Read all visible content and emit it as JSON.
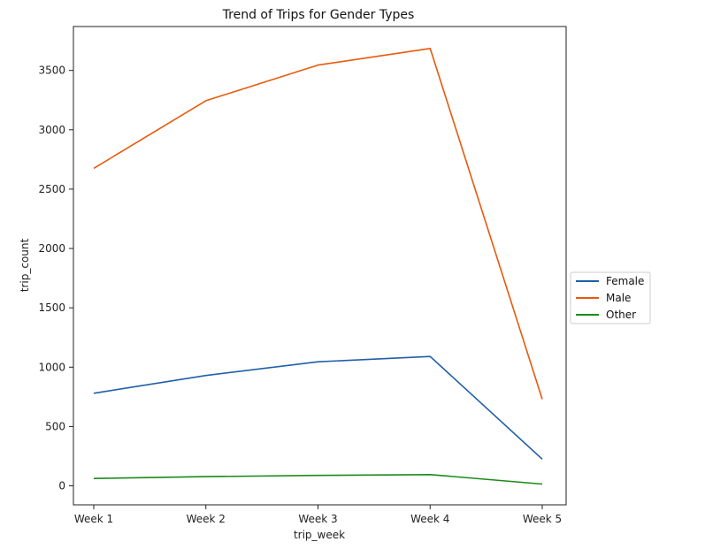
{
  "chart_data": {
    "type": "line",
    "title": "Trend of Trips for Gender Types",
    "xlabel": "trip_week",
    "ylabel": "trip_count",
    "categories": [
      "Week 1",
      "Week 2",
      "Week 3",
      "Week 4",
      "Week 5"
    ],
    "ylim": [
      -160,
      3870
    ],
    "yticks": [
      0,
      500,
      1000,
      1500,
      2000,
      2500,
      3000,
      3500
    ],
    "grid": false,
    "legend_position": "right-center",
    "series": [
      {
        "name": "Female",
        "color": "#1f5fa6",
        "values": [
          780,
          930,
          1045,
          1090,
          225
        ]
      },
      {
        "name": "Male",
        "color": "#e8590c",
        "values": [
          2675,
          3245,
          3545,
          3685,
          730
        ]
      },
      {
        "name": "Other",
        "color": "#1a8a1a",
        "values": [
          62,
          78,
          88,
          95,
          15
        ]
      }
    ]
  }
}
